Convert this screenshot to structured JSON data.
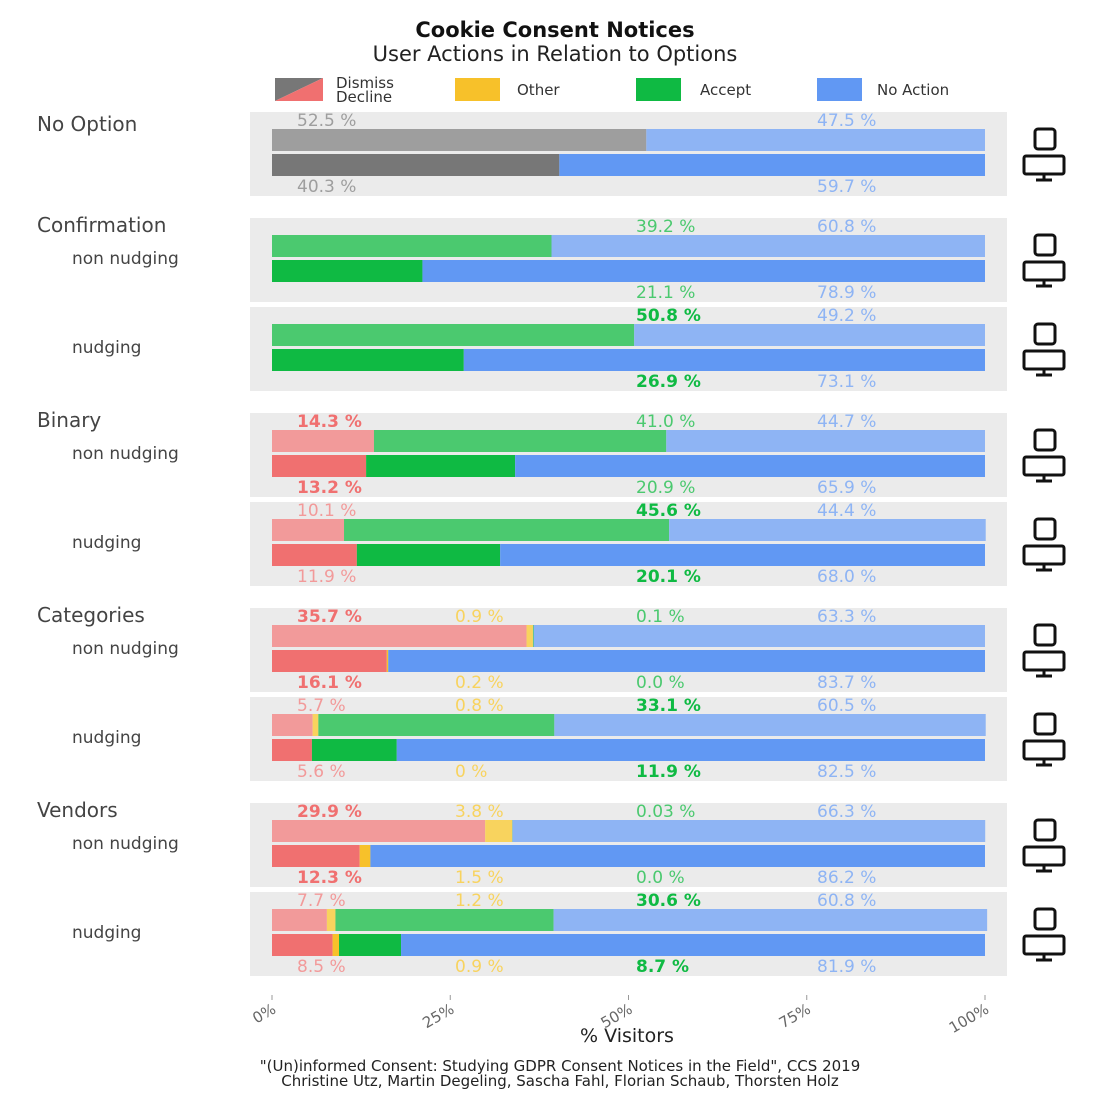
{
  "title": "Cookie Consent Notices",
  "subtitle": "User Actions in Relation to Options",
  "legend": {
    "dismiss": "Dismiss",
    "decline": "Decline",
    "other": "Other",
    "accept": "Accept",
    "no_action": "No Action"
  },
  "colors": {
    "dismiss": "#777777",
    "dismiss_light": "#9e9e9e",
    "decline": "#f07070",
    "decline_light": "#f29a9a",
    "other": "#f7c12a",
    "other_light": "#f8d35e",
    "accept": "#0fba43",
    "accept_light": "#4bc96f",
    "no_action": "#6198f3",
    "no_action_light": "#8eb4f4",
    "panel_bg": "#ebebeb"
  },
  "icons": {
    "mobile": "mobile-icon",
    "desktop": "desktop-icon"
  },
  "chart_data": {
    "type": "bar",
    "orientation": "horizontal",
    "stacked": true,
    "title": "Cookie Consent Notices",
    "subtitle": "User Actions in Relation to Options",
    "xlabel": "% Visitors",
    "xlim": [
      0,
      100
    ],
    "xticks": [
      "0%",
      "25%",
      "50%",
      "75%",
      "100%"
    ],
    "series_order": [
      "decline",
      "other",
      "accept",
      "no_action"
    ],
    "groups": [
      {
        "label": "No Option",
        "panels": [
          {
            "label": "",
            "mobile": {
              "values": [
                52.5,
                0,
                0,
                47.5
              ],
              "first": "dismiss",
              "labels": [
                "52.5 %",
                "",
                "",
                "47.5 %"
              ],
              "bold": []
            },
            "desktop": {
              "values": [
                40.3,
                0,
                0,
                59.7
              ],
              "first": "dismiss",
              "labels": [
                "40.3 %",
                "",
                "",
                "59.7 %"
              ],
              "bold": []
            }
          }
        ]
      },
      {
        "label": "Confirmation",
        "panels": [
          {
            "label": "non nudging",
            "mobile": {
              "values": [
                0,
                0,
                39.2,
                60.8
              ],
              "labels": [
                "",
                "",
                "39.2 %",
                "60.8 %"
              ],
              "bold": []
            },
            "desktop": {
              "values": [
                0,
                0,
                21.1,
                78.9
              ],
              "labels": [
                "",
                "",
                "21.1 %",
                "78.9 %"
              ],
              "bold": []
            }
          },
          {
            "label": "nudging",
            "mobile": {
              "values": [
                0,
                0,
                50.8,
                49.2
              ],
              "labels": [
                "",
                "",
                "50.8 %",
                "49.2 %"
              ],
              "bold": [
                2
              ]
            },
            "desktop": {
              "values": [
                0,
                0,
                26.9,
                73.1
              ],
              "labels": [
                "",
                "",
                "26.9 %",
                "73.1 %"
              ],
              "bold": [
                2
              ]
            }
          }
        ]
      },
      {
        "label": "Binary",
        "panels": [
          {
            "label": "non nudging",
            "mobile": {
              "values": [
                14.3,
                0,
                41.0,
                44.7
              ],
              "labels": [
                "14.3 %",
                "",
                "41.0 %",
                "44.7 %"
              ],
              "bold": [
                0
              ]
            },
            "desktop": {
              "values": [
                13.2,
                0,
                20.9,
                65.9
              ],
              "labels": [
                "13.2 %",
                "",
                "20.9 %",
                "65.9 %"
              ],
              "bold": [
                0
              ]
            }
          },
          {
            "label": "nudging",
            "mobile": {
              "values": [
                10.1,
                0,
                45.6,
                44.4
              ],
              "labels": [
                "10.1 %",
                "",
                "45.6 %",
                "44.4 %"
              ],
              "bold": [
                2
              ]
            },
            "desktop": {
              "values": [
                11.9,
                0,
                20.1,
                68.0
              ],
              "labels": [
                "11.9 %",
                "",
                "20.1 %",
                "68.0 %"
              ],
              "bold": [
                2
              ]
            }
          }
        ]
      },
      {
        "label": "Categories",
        "panels": [
          {
            "label": "non nudging",
            "mobile": {
              "values": [
                35.7,
                0.9,
                0.1,
                63.3
              ],
              "labels": [
                "35.7 %",
                "0.9 %",
                "0.1 %",
                "63.3 %"
              ],
              "bold": [
                0
              ]
            },
            "desktop": {
              "values": [
                16.1,
                0.2,
                0.0,
                83.7
              ],
              "labels": [
                "16.1 %",
                "0.2 %",
                "0.0 %",
                "83.7 %"
              ],
              "bold": [
                0
              ]
            }
          },
          {
            "label": "nudging",
            "mobile": {
              "values": [
                5.7,
                0.8,
                33.1,
                60.5
              ],
              "labels": [
                "5.7 %",
                "0.8 %",
                "33.1 %",
                "60.5 %"
              ],
              "bold": [
                2
              ]
            },
            "desktop": {
              "values": [
                5.6,
                0,
                11.9,
                82.5
              ],
              "labels": [
                "5.6 %",
                "0 %",
                "11.9 %",
                "82.5 %"
              ],
              "bold": [
                2
              ]
            }
          }
        ]
      },
      {
        "label": "Vendors",
        "panels": [
          {
            "label": "non nudging",
            "mobile": {
              "values": [
                29.9,
                3.8,
                0.03,
                66.3
              ],
              "labels": [
                "29.9 %",
                "3.8 %",
                "0.03 %",
                "66.3 %"
              ],
              "bold": [
                0
              ]
            },
            "desktop": {
              "values": [
                12.3,
                1.5,
                0.0,
                86.2
              ],
              "labels": [
                "12.3 %",
                "1.5 %",
                "0.0 %",
                "86.2 %"
              ],
              "bold": [
                0
              ]
            }
          },
          {
            "label": "nudging",
            "mobile": {
              "values": [
                7.7,
                1.2,
                30.6,
                60.8
              ],
              "labels": [
                "7.7 %",
                "1.2 %",
                "30.6 %",
                "60.8 %"
              ],
              "bold": [
                2
              ]
            },
            "desktop": {
              "values": [
                8.5,
                0.9,
                8.7,
                81.9
              ],
              "labels": [
                "8.5 %",
                "0.9 %",
                "8.7 %",
                "81.9 %"
              ],
              "bold": [
                2
              ]
            }
          }
        ]
      }
    ]
  },
  "caption": {
    "line1": "\"(Un)informed Consent: Studying GDPR Consent Notices in the Field\", CCS 2019",
    "line2": "Christine Utz, Martin Degeling, Sascha Fahl, Florian Schaub, Thorsten Holz"
  }
}
